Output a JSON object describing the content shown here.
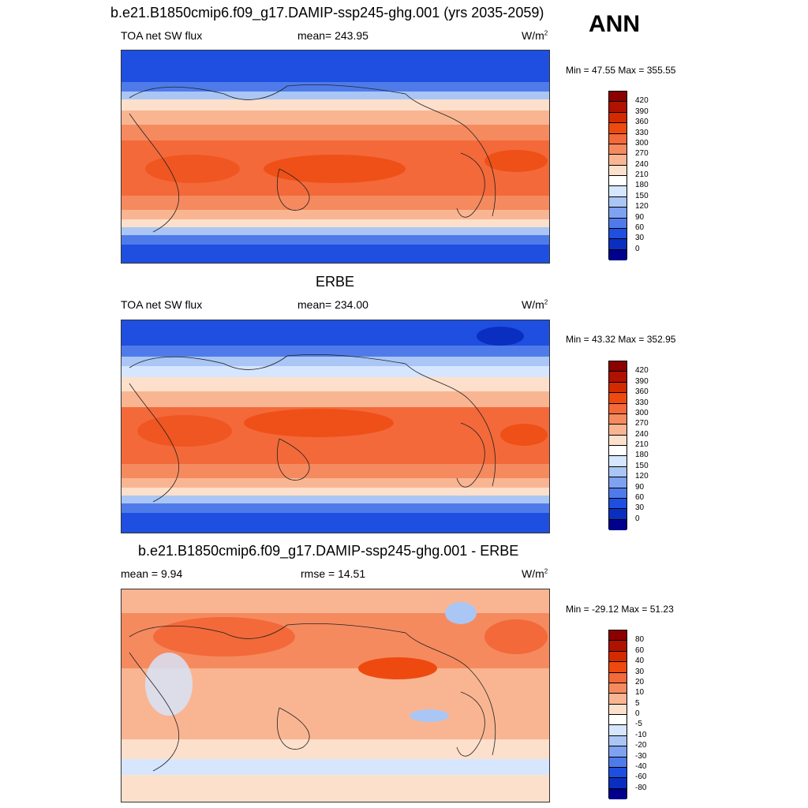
{
  "season": "ANN",
  "panel1": {
    "title": "b.e21.B1850cmip6.f09_g17.DAMIP-ssp245-ghg.001 (yrs 2035-2059)",
    "left": "TOA net SW flux",
    "center": "mean= 243.95",
    "units": "W/m",
    "units_sup": "2",
    "minmax": "Min =  47.55 Max = 355.55"
  },
  "panel2": {
    "title": "ERBE",
    "left": "TOA net SW flux",
    "center": "mean= 234.00",
    "units": "W/m",
    "units_sup": "2",
    "minmax": "Min =  43.32 Max = 352.95"
  },
  "panel3": {
    "title": "b.e21.B1850cmip6.f09_g17.DAMIP-ssp245-ghg.001 - ERBE",
    "left": "mean =   9.94",
    "center": "rmse =  14.51",
    "units": "W/m",
    "units_sup": "2",
    "minmax": "Min = -29.12 Max =  51.23"
  },
  "colorbar_flux": {
    "labels": [
      "420",
      "390",
      "360",
      "330",
      "300",
      "270",
      "240",
      "210",
      "180",
      "150",
      "120",
      "90",
      "60",
      "30",
      "0"
    ],
    "colors": [
      "#8b0000",
      "#b01200",
      "#d42a00",
      "#ee4a10",
      "#f3693a",
      "#f58a5f",
      "#f9b592",
      "#fde0cc",
      "#ffffff",
      "#d6e6ff",
      "#aac6f5",
      "#7ea2ef",
      "#4f7bea",
      "#1f4fe0",
      "#0a2fc0",
      "#00008c"
    ]
  },
  "colorbar_diff": {
    "labels": [
      "80",
      "60",
      "40",
      "30",
      "20",
      "10",
      "5",
      "0",
      "-5",
      "-10",
      "-20",
      "-30",
      "-40",
      "-60",
      "-80"
    ],
    "colors": [
      "#8b0000",
      "#b01200",
      "#d42a00",
      "#ee4a10",
      "#f3693a",
      "#f58a5f",
      "#f9b592",
      "#fde0cc",
      "#ffffff",
      "#d6e6ff",
      "#aac6f5",
      "#7ea2ef",
      "#4f7bea",
      "#1f4fe0",
      "#0a2fc0",
      "#00008c"
    ]
  }
}
